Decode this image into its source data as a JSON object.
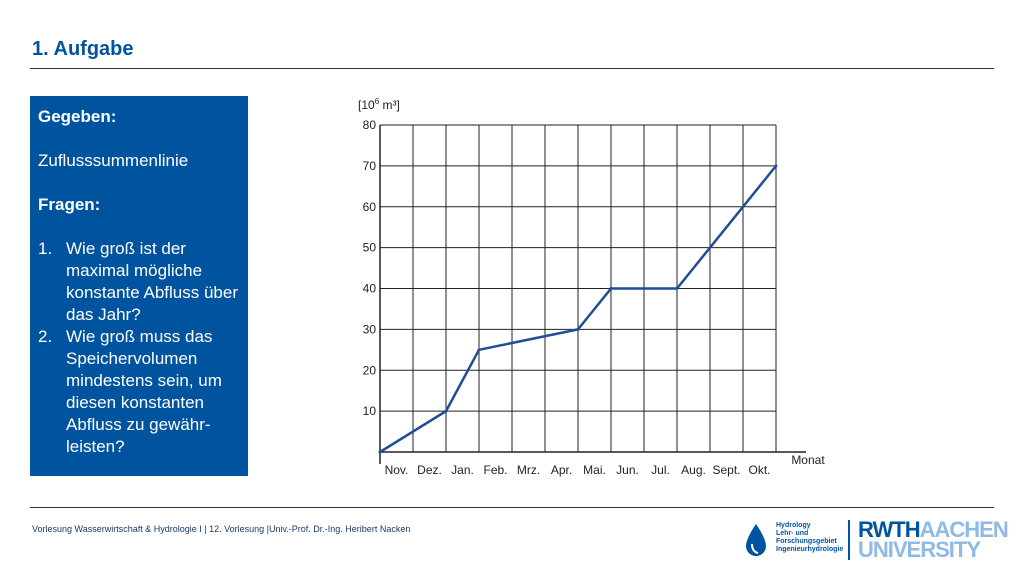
{
  "slide": {
    "title": "1. Aufgabe"
  },
  "given": {
    "heading": "Gegeben:",
    "item": "Zuflusssummenlinie",
    "questions_heading": "Fragen:",
    "questions": [
      {
        "num": "1.",
        "text": "Wie groß ist der maximal mögliche konstante Abfluss über das Jahr?"
      },
      {
        "num": "2.",
        "text": "Wie groß muss das Speichervolumen mindestens sein, um diesen konstanten Abfluss zu gewähr-leisten?"
      }
    ]
  },
  "chart_data": {
    "type": "line",
    "ylabel_base": "[10",
    "ylabel_exp": "6",
    "ylabel_unit": " m³]",
    "xlabel": "Monat",
    "ylim": [
      0,
      80
    ],
    "yticks": [
      10,
      20,
      30,
      40,
      50,
      60,
      70,
      80
    ],
    "categories": [
      "Nov.",
      "Dez.",
      "Jan.",
      "Feb.",
      "Mrz.",
      "Apr.",
      "Mai.",
      "Jun.",
      "Jul.",
      "Aug.",
      "Sept.",
      "Okt."
    ],
    "x": [
      0,
      2,
      3,
      6,
      7,
      9,
      12
    ],
    "y": [
      0,
      10,
      25,
      30,
      40,
      40,
      70
    ],
    "line_color": "#1f4e96",
    "grid": true
  },
  "footer": {
    "text": "Vorlesung Wasserwirtschaft & Hydrologie I | 12. Vorlesung |Univ.-Prof. Dr.-Ing. Heribert Nacken"
  },
  "logos": {
    "hydro_lines": [
      "Hydrology",
      "Lehr- und",
      "Forschungsgebiet",
      "Ingenieurhydrologie"
    ],
    "rwth_dark": "RWTH",
    "rwth_light": "AACHEN",
    "rwth_line2": "UNIVERSITY",
    "brand_color": "#00549f"
  }
}
